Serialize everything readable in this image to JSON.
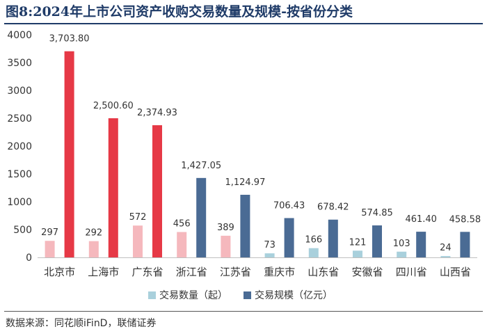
{
  "title": "图8:2024年上市公司资产收购交易数量及规模-按省份分类",
  "source": "数据来源：同花顺iFinD，联储证券",
  "colors": {
    "title": "#1f3b68",
    "count_default": "#a9d0dc",
    "count_highlight": "#f5b8bd",
    "scale_default": "#4a6b94",
    "scale_highlight": "#e63946"
  },
  "chart_data": {
    "type": "bar",
    "categories": [
      "北京市",
      "上海市",
      "广东省",
      "浙江省",
      "江苏省",
      "重庆市",
      "山东省",
      "安徽省",
      "四川省",
      "山西省"
    ],
    "series": [
      {
        "name": "交易数量（起）",
        "values": [
          297,
          292,
          572,
          456,
          389,
          73,
          166,
          121,
          103,
          24
        ],
        "labels": [
          "297",
          "292",
          "572",
          "456",
          "389",
          "73",
          "166",
          "121",
          "103",
          "24"
        ]
      },
      {
        "name": "交易规模（亿元）",
        "values": [
          3703.8,
          2500.6,
          2374.93,
          1427.05,
          1124.97,
          706.43,
          678.42,
          574.85,
          461.4,
          458.58
        ],
        "labels": [
          "3,703.80",
          "2,500.60",
          "2,374.93",
          "1,427.05",
          "1,124.97",
          "706.43",
          "678.42",
          "574.85",
          "461.40",
          "458.58"
        ]
      }
    ],
    "highlight_categories": [
      "北京市",
      "上海市",
      "广东省",
      "浙江省",
      "江苏省"
    ],
    "highlight_scale_categories": [
      "北京市",
      "上海市",
      "广东省"
    ],
    "yticks": [
      "0",
      "500",
      "1000",
      "1500",
      "2000",
      "2500",
      "3000",
      "3500",
      "4000"
    ],
    "ylim": [
      0,
      4000
    ],
    "legend_position": "bottom",
    "grid": false
  }
}
